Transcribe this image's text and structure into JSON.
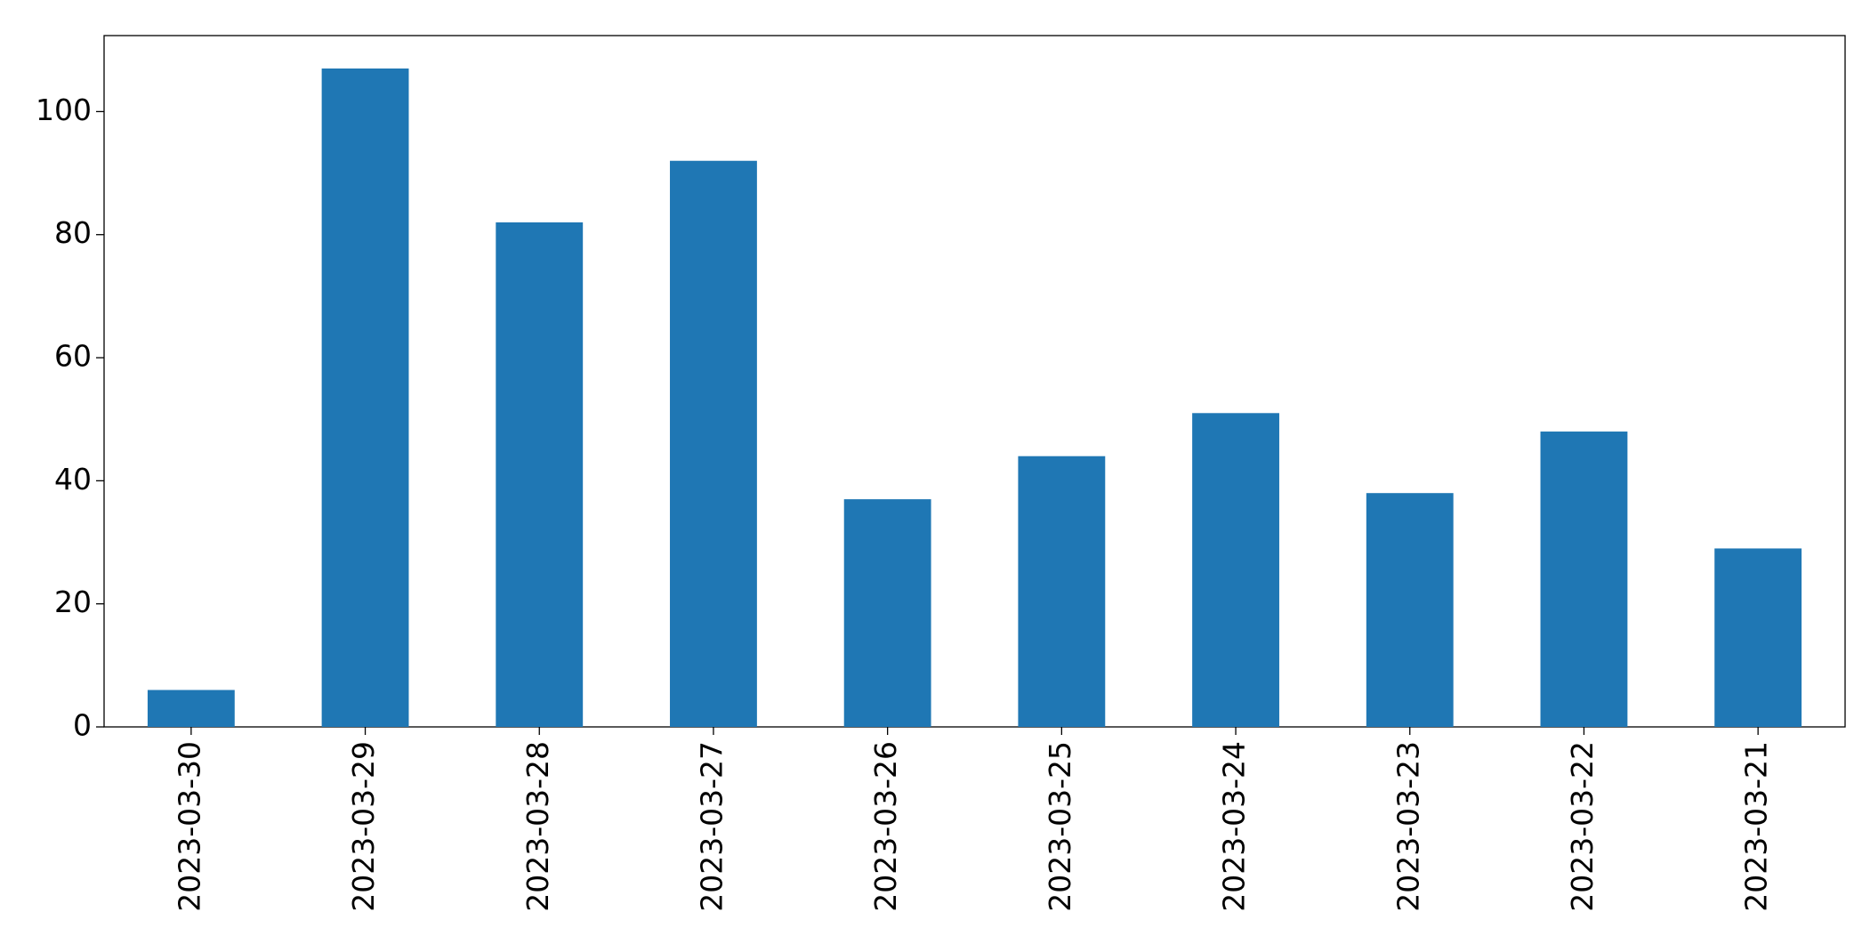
{
  "chart_data": {
    "type": "bar",
    "categories": [
      "2023-03-30",
      "2023-03-29",
      "2023-03-28",
      "2023-03-27",
      "2023-03-26",
      "2023-03-25",
      "2023-03-24",
      "2023-03-23",
      "2023-03-22",
      "2023-03-21"
    ],
    "values": [
      6,
      107,
      82,
      92,
      37,
      44,
      51,
      38,
      48,
      29
    ],
    "color": "#1f77b4",
    "ylim": [
      0,
      112.35
    ],
    "yticks": [
      0,
      20,
      40,
      60,
      80,
      100
    ],
    "grid": false
  }
}
